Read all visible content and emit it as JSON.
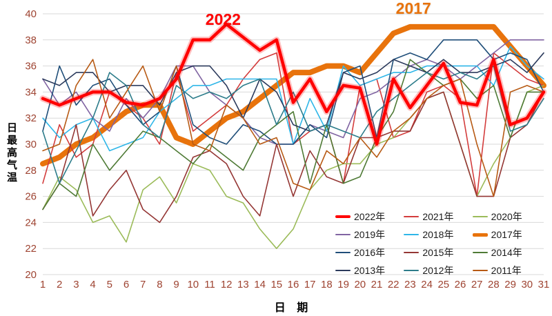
{
  "colors": {
    "gridline": "#d9d9d9",
    "tick_label": "#9e4331",
    "axis_title": "#c05a2b",
    "background": "#ffffff",
    "legend_text": "#1a1a1a"
  },
  "chart_data": {
    "type": "line",
    "title": "",
    "xlabel": "日  期",
    "ylabel": "日最高气温",
    "ylim": [
      20,
      40
    ],
    "y_tick_step": 2,
    "x": [
      1,
      2,
      3,
      4,
      5,
      6,
      7,
      8,
      9,
      10,
      11,
      12,
      13,
      14,
      15,
      16,
      17,
      18,
      19,
      20,
      21,
      22,
      23,
      24,
      25,
      26,
      27,
      28,
      29,
      30,
      31
    ],
    "grid": "horizontal",
    "legend_position": "inside-bottom-right",
    "series": [
      {
        "name": "2022年",
        "color": "#ff0000",
        "width": 4.5,
        "values": [
          33.5,
          33,
          33.5,
          34,
          34,
          33.2,
          33,
          33.5,
          35,
          38,
          38,
          39.2,
          38.2,
          37.2,
          38,
          33.2,
          35,
          32.5,
          34.5,
          34.3,
          30,
          35,
          32.8,
          34.5,
          36.2,
          33.2,
          33,
          36.5,
          31.5,
          32,
          34
        ]
      },
      {
        "name": "2021年",
        "color": "#d33c3c",
        "width": 1.6,
        "values": [
          27,
          31.5,
          29,
          30,
          34,
          33,
          32,
          30,
          35.5,
          31,
          32,
          33,
          35,
          36.5,
          37,
          30,
          31,
          31.5,
          27,
          34.5,
          35,
          30.5,
          31,
          34,
          34.5,
          33.5,
          26,
          37,
          36,
          35,
          34.5
        ]
      },
      {
        "name": "2020年",
        "color": "#9bbb59",
        "width": 1.6,
        "values": [
          25,
          27.5,
          26.5,
          24,
          24.5,
          22.5,
          26.5,
          27.5,
          25.5,
          28.5,
          28,
          26,
          25.5,
          23.5,
          22,
          23.5,
          26.5,
          28,
          28.5,
          28.5,
          30,
          30.5,
          32,
          33.5,
          34,
          30,
          26,
          28.5,
          30.5,
          34,
          34.5
        ]
      },
      {
        "name": "2019年",
        "color": "#8064a2",
        "width": 1.6,
        "values": [
          35,
          33,
          34,
          32,
          31,
          33.5,
          32,
          33.5,
          36,
          36,
          34,
          33,
          32,
          30.5,
          30,
          30,
          31.5,
          31,
          30.5,
          33.5,
          34,
          35,
          36,
          36.5,
          36,
          35,
          36,
          37,
          38,
          38,
          38
        ]
      },
      {
        "name": "2018年",
        "color": "#2eb6e8",
        "width": 1.6,
        "values": [
          32,
          30.5,
          31.5,
          32,
          29.5,
          30,
          30.5,
          32.5,
          33.5,
          34.5,
          34.5,
          35,
          35,
          35,
          35,
          30,
          33.5,
          31,
          36,
          34.5,
          35,
          35.5,
          35.5,
          36,
          36,
          36,
          36,
          34.5,
          37.5,
          36,
          35
        ]
      },
      {
        "name": "2017年",
        "color": "#e8730c",
        "width": 8,
        "values": [
          28.5,
          29,
          30,
          30.5,
          31.5,
          32.5,
          33,
          33,
          30.5,
          30,
          31,
          32,
          32.5,
          33.5,
          34.5,
          35.5,
          35.5,
          36,
          36,
          35.5,
          37,
          38.5,
          39,
          39,
          39,
          39,
          39,
          39,
          37.5,
          36,
          34.5
        ]
      },
      {
        "name": "2016年",
        "color": "#1f4e79",
        "width": 1.6,
        "values": [
          31,
          36,
          33,
          34.5,
          35,
          33,
          31.5,
          32.5,
          36,
          31.5,
          30.5,
          30,
          31.5,
          31,
          30,
          30,
          31.5,
          30.5,
          35.5,
          36,
          30.5,
          36.5,
          37,
          36.5,
          38,
          38,
          38,
          36.5,
          37,
          36.5,
          34
        ]
      },
      {
        "name": "2015年",
        "color": "#943634",
        "width": 1.6,
        "values": [
          25,
          27,
          31.5,
          24.5,
          26.5,
          28,
          25,
          24,
          26,
          29,
          29.5,
          28.5,
          26,
          24.5,
          30,
          26,
          29.5,
          27.5,
          27,
          30.5,
          30.5,
          31,
          31,
          33.5,
          34,
          30,
          26,
          26,
          30.5,
          31.5,
          34
        ]
      },
      {
        "name": "2014年",
        "color": "#4e7a35",
        "width": 1.6,
        "values": [
          25,
          27,
          26,
          30,
          28,
          29.5,
          31,
          30.5,
          29.5,
          28.5,
          30,
          29,
          28,
          30.5,
          31.5,
          32.5,
          27,
          31.5,
          27,
          27.5,
          30.5,
          32.5,
          36.5,
          35.5,
          34.5,
          35,
          33.5,
          34.5,
          30.5,
          34,
          34
        ]
      },
      {
        "name": "2013年",
        "color": "#2b3a5c",
        "width": 1.6,
        "values": [
          35,
          34.5,
          35.5,
          35.5,
          34,
          34.5,
          34.5,
          33,
          35.5,
          36,
          36,
          34.5,
          32,
          35,
          34,
          31.5,
          31,
          31.5,
          35.5,
          35,
          35.5,
          36.5,
          36,
          35.5,
          36.5,
          35.5,
          35.5,
          36,
          36.5,
          35.5,
          37
        ]
      },
      {
        "name": "2012年",
        "color": "#2c7c8a",
        "width": 1.6,
        "values": [
          31,
          27,
          29.5,
          32,
          35.5,
          34.5,
          31.5,
          30.5,
          34.5,
          33.5,
          34,
          33.5,
          34.5,
          35,
          31.5,
          34,
          31,
          31.5,
          31,
          30.5,
          32.5,
          33.5,
          34.5,
          35.5,
          35,
          35.5,
          35,
          36,
          31,
          31.5,
          33.5
        ]
      },
      {
        "name": "2011年",
        "color": "#b75a14",
        "width": 1.6,
        "values": [
          29.5,
          30,
          34.5,
          36.5,
          32,
          34,
          36,
          32.5,
          36,
          30,
          29.5,
          33,
          32,
          30,
          30.5,
          27,
          26.5,
          29.5,
          28.5,
          30.5,
          29,
          31,
          32,
          33.5,
          34.5,
          35,
          30,
          26,
          34,
          34.5,
          34
        ]
      }
    ],
    "annotations": [
      {
        "text": "2022",
        "color": "#ff0000",
        "day": 11.8,
        "value": 39.6
      },
      {
        "text": "2017",
        "color": "#e8730c",
        "day": 23.2,
        "value": 40.4
      }
    ]
  }
}
